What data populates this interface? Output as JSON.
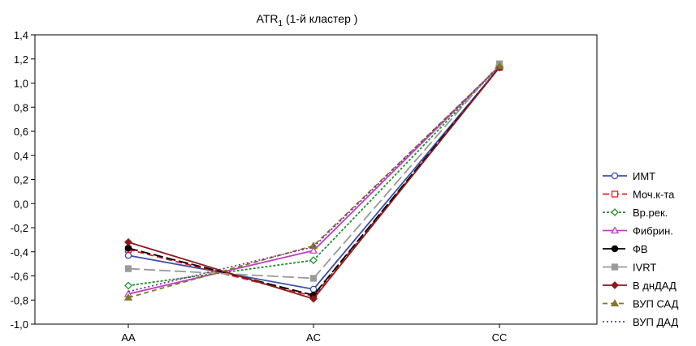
{
  "chart_data": {
    "type": "line",
    "title": "ATR",
    "title_subscript": "1",
    "title_suffix": " (1-й кластер )",
    "xlabel": "",
    "ylabel": "",
    "categories": [
      "AA",
      "AC",
      "CC"
    ],
    "ylim": [
      -1.0,
      1.4
    ],
    "yticks": [
      -1.0,
      -0.8,
      -0.6,
      -0.4,
      -0.2,
      0.0,
      0.2,
      0.4,
      0.6,
      0.8,
      1.0,
      1.2,
      1.4
    ],
    "ytick_labels": [
      "-1,0",
      "-0,8",
      "-0,6",
      "-0,4",
      "-0,2",
      "0,0",
      "0,2",
      "0,4",
      "0,6",
      "0,8",
      "1,0",
      "1,2",
      "1,4"
    ],
    "grid": false,
    "legend_position": "right",
    "series": [
      {
        "name": "ИМТ",
        "values": [
          -0.43,
          -0.71,
          1.13
        ],
        "color": "#3b4fa8",
        "dash": "",
        "marker": "circle-open"
      },
      {
        "name": "Моч.к-та",
        "values": [
          -0.38,
          -0.77,
          1.13
        ],
        "color": "#e0202a",
        "dash": "8,4",
        "marker": "square-open"
      },
      {
        "name": "Вр.рек.",
        "values": [
          -0.68,
          -0.47,
          1.14
        ],
        "color": "#1f8f2a",
        "dash": "3,2",
        "marker": "diamond-open"
      },
      {
        "name": "Фибрин.",
        "values": [
          -0.75,
          -0.39,
          1.14
        ],
        "color": "#c040c0",
        "dash": "",
        "marker": "triangle-open"
      },
      {
        "name": "ФВ",
        "values": [
          -0.37,
          -0.76,
          1.13
        ],
        "color": "#000000",
        "dash": "12,4",
        "marker": "circle-filled"
      },
      {
        "name": "IVRT",
        "values": [
          -0.54,
          -0.62,
          1.16
        ],
        "color": "#9a9a9a",
        "dash": "14,5",
        "marker": "square-filled"
      },
      {
        "name": "В днДАД",
        "values": [
          -0.32,
          -0.79,
          1.13
        ],
        "color": "#8b1a1a",
        "dash": "",
        "marker": "diamond-filled"
      },
      {
        "name": "ВУП САД",
        "values": [
          -0.78,
          -0.35,
          1.14
        ],
        "color": "#7f7a2a",
        "dash": "6,4",
        "marker": "triangle-filled"
      },
      {
        "name": "ВУП ДАД",
        "values": [
          -0.73,
          -0.36,
          1.14
        ],
        "color": "#7a2aa8",
        "dash": "2,3",
        "marker": "none"
      }
    ]
  }
}
